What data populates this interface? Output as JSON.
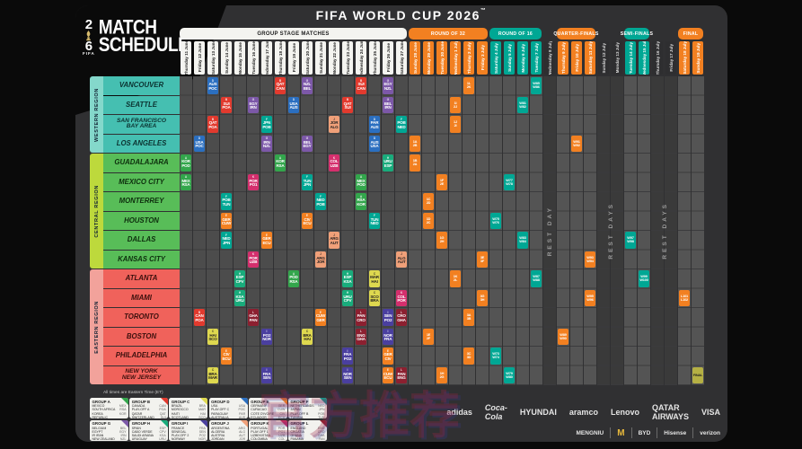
{
  "title": "FIFA WORLD CUP 2026",
  "title_tm": "™",
  "logo": {
    "year_top": "2",
    "year_bottom": "6",
    "line1": "MATCH",
    "line2": "SCHEDULE",
    "fifa": "FIFA"
  },
  "times_note": "All times are Eastern Time (ET)",
  "watermark": "官方推荐",
  "colors": {
    "poster_bg": "#303032",
    "grid_group": "#4c4c4c",
    "grid_knockout": "#545454",
    "grid_rest": "#3a3a3a",
    "orange": "#f28021",
    "teal": "#00a794",
    "white_pill": "#f4f4f0",
    "final_gold": "#b5b044",
    "western_strip": "#84d8cb",
    "western_row": "#45bfb1",
    "central_strip": "#bdd93c",
    "central_row": "#58bd58",
    "eastern_strip": "#f2a29b",
    "eastern_row": "#f0625b"
  },
  "rounds": [
    {
      "label": "GROUP STAGE MATCHES",
      "type": "group",
      "from": 0,
      "to": 16
    },
    {
      "label": "ROUND OF 32",
      "type": "orange",
      "from": 17,
      "to": 22
    },
    {
      "label": "ROUND OF 16",
      "type": "teal",
      "from": 23,
      "to": 26
    },
    {
      "label": "QUARTER-FINALS",
      "type": "orange",
      "from": 28,
      "to": 30
    },
    {
      "label": "SEMI-FINALS",
      "type": "teal",
      "from": 33,
      "to": 34
    },
    {
      "label": "FINAL",
      "type": "orange",
      "from": 37,
      "to": 38
    }
  ],
  "columns": [
    {
      "d": "Thursday 11 June",
      "t": "group"
    },
    {
      "d": "Friday 12 June",
      "t": "group"
    },
    {
      "d": "Saturday 13 June",
      "t": "group"
    },
    {
      "d": "Sunday 14 June",
      "t": "group"
    },
    {
      "d": "Monday 15 June",
      "t": "group"
    },
    {
      "d": "Tuesday 16 June",
      "t": "group"
    },
    {
      "d": "Wednesday 17 June",
      "t": "group"
    },
    {
      "d": "Thursday 18 June",
      "t": "group"
    },
    {
      "d": "Friday 19 June",
      "t": "group"
    },
    {
      "d": "Saturday 20 June",
      "t": "group"
    },
    {
      "d": "Sunday 21 June",
      "t": "group"
    },
    {
      "d": "Monday 22 June",
      "t": "group"
    },
    {
      "d": "Tuesday 23 June",
      "t": "group"
    },
    {
      "d": "Wednesday 24 June",
      "t": "group"
    },
    {
      "d": "Thursday 25 June",
      "t": "group"
    },
    {
      "d": "Friday 26 June",
      "t": "group"
    },
    {
      "d": "Saturday 27 June",
      "t": "group"
    },
    {
      "d": "Sunday 28 June",
      "t": "r32"
    },
    {
      "d": "Monday 29 June",
      "t": "r32"
    },
    {
      "d": "Tuesday 30 June",
      "t": "r32"
    },
    {
      "d": "Wednesday 1 July",
      "t": "r32"
    },
    {
      "d": "Thursday 2 July",
      "t": "r32"
    },
    {
      "d": "Friday 3 July",
      "t": "r32"
    },
    {
      "d": "Saturday 4 July",
      "t": "r16"
    },
    {
      "d": "Sunday 5 July",
      "t": "r16"
    },
    {
      "d": "Monday 6 July",
      "t": "r16"
    },
    {
      "d": "Tuesday 7 July",
      "t": "r16"
    },
    {
      "d": "Wednesday 8 July",
      "t": "rest"
    },
    {
      "d": "Thursday 9 July",
      "t": "qf"
    },
    {
      "d": "Friday 10 July",
      "t": "qf"
    },
    {
      "d": "Saturday 11 July",
      "t": "qf"
    },
    {
      "d": "Sunday 12 July",
      "t": "rest"
    },
    {
      "d": "Monday 13 July",
      "t": "rest"
    },
    {
      "d": "Tuesday 14 July",
      "t": "sf"
    },
    {
      "d": "Wednesday 15 July",
      "t": "sf"
    },
    {
      "d": "Thursday 16 July",
      "t": "rest"
    },
    {
      "d": "Friday 17 July",
      "t": "rest"
    },
    {
      "d": "Saturday 18 July",
      "t": "final"
    },
    {
      "d": "Sunday 19 July",
      "t": "final"
    }
  ],
  "rest_labels": [
    {
      "col": 27,
      "span": 1,
      "label": "REST DAY"
    },
    {
      "col": 31,
      "span": 2,
      "label": "REST DAYS"
    },
    {
      "col": 35,
      "span": 2,
      "label": "REST DAYS"
    }
  ],
  "regions": [
    {
      "name": "WESTERN REGION",
      "cities": [
        "VANCOUVER",
        "SEATTLE",
        "SAN FRANCISCO\nBAY AREA",
        "LOS ANGELES"
      ]
    },
    {
      "name": "CENTRAL REGION",
      "cities": [
        "GUADALAJARA",
        "MEXICO CITY",
        "MONTERREY",
        "HOUSTON",
        "DALLAS",
        "KANSAS CITY"
      ]
    },
    {
      "name": "EASTERN REGION",
      "cities": [
        "ATLANTA",
        "MIAMI",
        "TORONTO",
        "BOSTON",
        "PHILADELPHIA",
        "NEW YORK\nNEW JERSEY"
      ]
    }
  ],
  "group_colors": {
    "A": "#33a64c",
    "B": "#e23a2e",
    "C": "#ded84f",
    "D": "#2b6fc0",
    "E": "#f28021",
    "F": "#00a794",
    "G": "#7c58a8",
    "H": "#19ac7c",
    "I": "#4a3f9f",
    "J": "#f0a079",
    "K": "#d42f6d",
    "L": "#8c2030"
  },
  "dark_text_groups": [
    "C",
    "J"
  ],
  "groups": [
    {
      "letter": "A",
      "title": "GROUP A",
      "teams": [
        [
          "MEXICO",
          "MEX"
        ],
        [
          "SOUTH AFRICA",
          "RSA"
        ],
        [
          "KOREA REPUBLIC",
          "KOR"
        ],
        [
          "PLAY-OFF D",
          "POD"
        ]
      ]
    },
    {
      "letter": "B",
      "title": "GROUP B",
      "teams": [
        [
          "CANADA",
          "CAN"
        ],
        [
          "PLAY-OFF A",
          "POA"
        ],
        [
          "QATAR",
          "QAT"
        ],
        [
          "SWITZERLAND",
          "SUI"
        ]
      ]
    },
    {
      "letter": "C",
      "title": "GROUP C",
      "teams": [
        [
          "BRAZIL",
          "BRA"
        ],
        [
          "MOROCCO",
          "MAR"
        ],
        [
          "HAITI",
          "HAI"
        ],
        [
          "SCOTLAND",
          "SCO"
        ]
      ]
    },
    {
      "letter": "D",
      "title": "GROUP D",
      "teams": [
        [
          "USA",
          "USA"
        ],
        [
          "PLAY-OFF C",
          "POC"
        ],
        [
          "PARAGUAY",
          "PAR"
        ],
        [
          "AUSTRALIA",
          "AUS"
        ]
      ]
    },
    {
      "letter": "E",
      "title": "GROUP E",
      "teams": [
        [
          "GERMANY",
          "GER"
        ],
        [
          "CURACAO",
          "CUW"
        ],
        [
          "COTE D'IVOIRE",
          "CIV"
        ],
        [
          "ECUADOR",
          "ECU"
        ]
      ]
    },
    {
      "letter": "F",
      "title": "GROUP F",
      "teams": [
        [
          "NETHERLANDS",
          "NED"
        ],
        [
          "JAPAN",
          "JPN"
        ],
        [
          "PLAY-OFF B",
          "POB"
        ],
        [
          "TUNISIA",
          "TUN"
        ]
      ]
    },
    {
      "letter": "G",
      "title": "GROUP G",
      "teams": [
        [
          "BELGIUM",
          "BEL"
        ],
        [
          "EGYPT",
          "EGY"
        ],
        [
          "IR IRAN",
          "IRN"
        ],
        [
          "NEW ZEALAND",
          "NZL"
        ]
      ]
    },
    {
      "letter": "H",
      "title": "GROUP H",
      "teams": [
        [
          "SPAIN",
          "ESP"
        ],
        [
          "CABO VERDE",
          "CPV"
        ],
        [
          "SAUDI ARABIA",
          "KSA"
        ],
        [
          "URUGUAY",
          "URU"
        ]
      ]
    },
    {
      "letter": "I",
      "title": "GROUP I",
      "teams": [
        [
          "FRANCE",
          "FRA"
        ],
        [
          "SENEGAL",
          "SEN"
        ],
        [
          "PLAY-OFF 2",
          "PO2"
        ],
        [
          "NORWAY",
          "NOR"
        ]
      ]
    },
    {
      "letter": "J",
      "title": "GROUP J",
      "teams": [
        [
          "ARGENTINA",
          "ARG"
        ],
        [
          "ALGERIA",
          "ALG"
        ],
        [
          "AUSTRIA",
          "AUT"
        ],
        [
          "JORDAN",
          "JOR"
        ]
      ]
    },
    {
      "letter": "K",
      "title": "GROUP K",
      "teams": [
        [
          "PORTUGAL",
          "POR"
        ],
        [
          "PLAY-OFF 1",
          "PO1"
        ],
        [
          "UZBEKISTAN",
          "UZB"
        ],
        [
          "COLOMBIA",
          "COL"
        ]
      ]
    },
    {
      "letter": "L",
      "title": "GROUP L",
      "teams": [
        [
          "ENGLAND",
          "ENG"
        ],
        [
          "CROATIA",
          "CRO"
        ],
        [
          "GHANA",
          "GHA"
        ],
        [
          "PANAMA",
          "PAN"
        ]
      ]
    }
  ],
  "matches": [
    {
      "r": 0,
      "c": 2,
      "g": "D",
      "t": [
        "AUS",
        "POC"
      ]
    },
    {
      "r": 0,
      "c": 7,
      "g": "B",
      "t": [
        "QAT",
        "CAN"
      ]
    },
    {
      "r": 0,
      "c": 9,
      "g": "G",
      "t": [
        "NZL",
        "BEL"
      ]
    },
    {
      "r": 0,
      "c": 13,
      "g": "B",
      "t": [
        "SUI",
        "CAN"
      ]
    },
    {
      "r": 0,
      "c": 15,
      "g": "G",
      "t": [
        "EGY",
        "NZL"
      ]
    },
    {
      "r": 1,
      "c": 3,
      "g": "B",
      "t": [
        "SUI",
        "POA"
      ]
    },
    {
      "r": 1,
      "c": 5,
      "g": "G",
      "t": [
        "EGY",
        "IRN"
      ]
    },
    {
      "r": 1,
      "c": 8,
      "g": "D",
      "t": [
        "USA",
        "AUS"
      ]
    },
    {
      "r": 1,
      "c": 12,
      "g": "B",
      "t": [
        "QAT",
        "SUI"
      ]
    },
    {
      "r": 1,
      "c": 15,
      "g": "G",
      "t": [
        "BEL",
        "IRN"
      ]
    },
    {
      "r": 2,
      "c": 2,
      "g": "B",
      "t": [
        "QAT",
        "POA"
      ]
    },
    {
      "r": 2,
      "c": 6,
      "g": "F",
      "t": [
        "JPN",
        "POB"
      ]
    },
    {
      "r": 2,
      "c": 11,
      "g": "J",
      "t": [
        "JOR",
        "ALG"
      ]
    },
    {
      "r": 2,
      "c": 14,
      "g": "D",
      "t": [
        "PAR",
        "AUS"
      ]
    },
    {
      "r": 2,
      "c": 16,
      "g": "F",
      "t": [
        "POB",
        "NED"
      ]
    },
    {
      "r": 3,
      "c": 1,
      "g": "D",
      "t": [
        "USA",
        "POC"
      ]
    },
    {
      "r": 3,
      "c": 6,
      "g": "G",
      "t": [
        "IRN",
        "NZL"
      ]
    },
    {
      "r": 3,
      "c": 9,
      "g": "G",
      "t": [
        "BEL",
        "EGY"
      ]
    },
    {
      "r": 3,
      "c": 14,
      "g": "D",
      "t": [
        "AUS",
        "USA"
      ]
    },
    {
      "r": 4,
      "c": 0,
      "g": "A",
      "t": [
        "KOR",
        "POD"
      ]
    },
    {
      "r": 4,
      "c": 7,
      "g": "A",
      "t": [
        "KOR",
        "RSA"
      ]
    },
    {
      "r": 4,
      "c": 11,
      "g": "K",
      "t": [
        "COL",
        "UZB"
      ]
    },
    {
      "r": 4,
      "c": 15,
      "g": "H",
      "t": [
        "URU",
        "ESP"
      ]
    },
    {
      "r": 5,
      "c": 0,
      "g": "A",
      "t": [
        "MEX",
        "RSA"
      ]
    },
    {
      "r": 5,
      "c": 5,
      "g": "K",
      "t": [
        "POR",
        "PO1"
      ]
    },
    {
      "r": 5,
      "c": 9,
      "g": "F",
      "t": [
        "TUN",
        "JPN"
      ]
    },
    {
      "r": 5,
      "c": 13,
      "g": "A",
      "t": [
        "MEX",
        "POD"
      ]
    },
    {
      "r": 6,
      "c": 3,
      "g": "F",
      "t": [
        "POB",
        "TUN"
      ]
    },
    {
      "r": 6,
      "c": 10,
      "g": "F",
      "t": [
        "NED",
        "POB"
      ]
    },
    {
      "r": 6,
      "c": 13,
      "g": "A",
      "t": [
        "RSA",
        "KOR"
      ]
    },
    {
      "r": 7,
      "c": 3,
      "g": "E",
      "t": [
        "GER",
        "CUW"
      ]
    },
    {
      "r": 7,
      "c": 9,
      "g": "E",
      "t": [
        "CIV",
        "ECU"
      ]
    },
    {
      "r": 7,
      "c": 14,
      "g": "F",
      "t": [
        "TUN",
        "NED"
      ]
    },
    {
      "r": 8,
      "c": 3,
      "g": "F",
      "t": [
        "NED",
        "JPN"
      ]
    },
    {
      "r": 8,
      "c": 6,
      "g": "E",
      "t": [
        "GER",
        "ECU"
      ]
    },
    {
      "r": 8,
      "c": 11,
      "g": "J",
      "t": [
        "ARG",
        "AUT"
      ]
    },
    {
      "r": 9,
      "c": 5,
      "g": "K",
      "t": [
        "POR",
        "UZB"
      ]
    },
    {
      "r": 9,
      "c": 10,
      "g": "J",
      "t": [
        "ARG",
        "JOR"
      ]
    },
    {
      "r": 9,
      "c": 16,
      "g": "J",
      "t": [
        "ALG",
        "AUT"
      ]
    },
    {
      "r": 10,
      "c": 4,
      "g": "H",
      "t": [
        "ESP",
        "CPV"
      ]
    },
    {
      "r": 10,
      "c": 8,
      "g": "A",
      "t": [
        "POD",
        "RSA"
      ]
    },
    {
      "r": 10,
      "c": 12,
      "g": "H",
      "t": [
        "ESP",
        "KSA"
      ]
    },
    {
      "r": 10,
      "c": 14,
      "g": "C",
      "t": [
        "MAR",
        "HAI"
      ]
    },
    {
      "r": 11,
      "c": 4,
      "g": "H",
      "t": [
        "KSA",
        "URU"
      ]
    },
    {
      "r": 11,
      "c": 12,
      "g": "H",
      "t": [
        "URU",
        "CPV"
      ]
    },
    {
      "r": 11,
      "c": 14,
      "g": "C",
      "t": [
        "SCO",
        "BRA"
      ]
    },
    {
      "r": 11,
      "c": 16,
      "g": "K",
      "t": [
        "COL",
        "POR"
      ]
    },
    {
      "r": 12,
      "c": 1,
      "g": "B",
      "t": [
        "CAN",
        "POA"
      ]
    },
    {
      "r": 12,
      "c": 5,
      "g": "L",
      "t": [
        "GHA",
        "PAN"
      ]
    },
    {
      "r": 12,
      "c": 10,
      "g": "E",
      "t": [
        "CUW",
        "GER"
      ]
    },
    {
      "r": 12,
      "c": 13,
      "g": "L",
      "t": [
        "PAN",
        "CRO"
      ]
    },
    {
      "r": 12,
      "c": 15,
      "g": "I",
      "t": [
        "SEN",
        "PO2"
      ]
    },
    {
      "r": 12,
      "c": 16,
      "g": "L",
      "t": [
        "CRO",
        "GHA"
      ]
    },
    {
      "r": 13,
      "c": 2,
      "g": "C",
      "t": [
        "HAI",
        "SCO"
      ]
    },
    {
      "r": 13,
      "c": 6,
      "g": "I",
      "t": [
        "PO2",
        "NOR"
      ]
    },
    {
      "r": 13,
      "c": 9,
      "g": "C",
      "t": [
        "BRA",
        "HAI"
      ]
    },
    {
      "r": 13,
      "c": 13,
      "g": "L",
      "t": [
        "ENG",
        "GHA"
      ]
    },
    {
      "r": 13,
      "c": 15,
      "g": "I",
      "t": [
        "NOR",
        "FRA"
      ]
    },
    {
      "r": 14,
      "c": 3,
      "g": "E",
      "t": [
        "CIV",
        "ECU"
      ]
    },
    {
      "r": 14,
      "c": 12,
      "g": "I",
      "t": [
        "FRA",
        "PO2"
      ]
    },
    {
      "r": 14,
      "c": 15,
      "g": "E",
      "t": [
        "GER",
        "CIV"
      ]
    },
    {
      "r": 15,
      "c": 2,
      "g": "C",
      "t": [
        "BRA",
        "MAR"
      ]
    },
    {
      "r": 15,
      "c": 6,
      "g": "I",
      "t": [
        "FRA",
        "SEN"
      ]
    },
    {
      "r": 15,
      "c": 12,
      "g": "I",
      "t": [
        "NOR",
        "SEN"
      ]
    },
    {
      "r": 15,
      "c": 15,
      "g": "E",
      "t": [
        "CUW",
        "ECU"
      ]
    },
    {
      "r": 15,
      "c": 16,
      "g": "L",
      "t": [
        "PAN",
        "ENG"
      ]
    }
  ],
  "knockout": [
    {
      "r": 3,
      "c": 17,
      "k": "r32",
      "t": [
        "1A",
        "2B"
      ]
    },
    {
      "r": 4,
      "c": 17,
      "k": "r32",
      "t": [
        "1B",
        "2A"
      ]
    },
    {
      "r": 6,
      "c": 18,
      "k": "r32",
      "t": [
        "1C",
        "2D"
      ]
    },
    {
      "r": 7,
      "c": 18,
      "k": "r32",
      "t": [
        "1D",
        "2C"
      ]
    },
    {
      "r": 13,
      "c": 18,
      "k": "r32",
      "t": [
        "1E",
        "2F"
      ]
    },
    {
      "r": 5,
      "c": 19,
      "k": "r32",
      "t": [
        "1F",
        "2E"
      ]
    },
    {
      "r": 8,
      "c": 19,
      "k": "r32",
      "t": [
        "1G",
        "2H"
      ]
    },
    {
      "r": 15,
      "c": 19,
      "k": "r32",
      "t": [
        "1H",
        "2G"
      ]
    },
    {
      "r": 1,
      "c": 20,
      "k": "r32",
      "t": [
        "1I",
        "2J"
      ]
    },
    {
      "r": 2,
      "c": 20,
      "k": "r32",
      "t": [
        "1J",
        "2I"
      ]
    },
    {
      "r": 10,
      "c": 20,
      "k": "r32",
      "t": [
        "1K",
        "2L"
      ]
    },
    {
      "r": 0,
      "c": 21,
      "k": "r32",
      "t": [
        "1L",
        "2K"
      ]
    },
    {
      "r": 12,
      "c": 21,
      "k": "r32",
      "t": [
        "3A",
        "3B"
      ]
    },
    {
      "r": 14,
      "c": 21,
      "k": "r32",
      "t": [
        "3C",
        "3D"
      ]
    },
    {
      "r": 9,
      "c": 22,
      "k": "r32",
      "t": [
        "3E",
        "3F"
      ]
    },
    {
      "r": 11,
      "c": 22,
      "k": "r32",
      "t": [
        "3G",
        "3H"
      ]
    },
    {
      "r": 14,
      "c": 23,
      "k": "r16",
      "t": [
        "W73",
        "W74"
      ]
    },
    {
      "r": 7,
      "c": 23,
      "k": "r16",
      "t": [
        "W75",
        "W76"
      ]
    },
    {
      "r": 5,
      "c": 24,
      "k": "r16",
      "t": [
        "W77",
        "W78"
      ]
    },
    {
      "r": 15,
      "c": 24,
      "k": "r16",
      "t": [
        "W79",
        "W80"
      ]
    },
    {
      "r": 1,
      "c": 25,
      "k": "r16",
      "t": [
        "W81",
        "W82"
      ]
    },
    {
      "r": 8,
      "c": 25,
      "k": "r16",
      "t": [
        "W83",
        "W84"
      ]
    },
    {
      "r": 0,
      "c": 26,
      "k": "r16",
      "t": [
        "W85",
        "W86"
      ]
    },
    {
      "r": 10,
      "c": 26,
      "k": "r16",
      "t": [
        "W87",
        "W88"
      ]
    },
    {
      "r": 13,
      "c": 28,
      "k": "qf",
      "t": [
        "W89",
        "W90"
      ]
    },
    {
      "r": 3,
      "c": 29,
      "k": "qf",
      "t": [
        "W91",
        "W92"
      ]
    },
    {
      "r": 9,
      "c": 30,
      "k": "qf",
      "t": [
        "W93",
        "W94"
      ]
    },
    {
      "r": 11,
      "c": 30,
      "k": "qf",
      "t": [
        "W95",
        "W96"
      ]
    },
    {
      "r": 8,
      "c": 33,
      "k": "sf",
      "t": [
        "W97",
        "W98"
      ]
    },
    {
      "r": 10,
      "c": 34,
      "k": "sf",
      "t": [
        "W99",
        "W100"
      ]
    },
    {
      "r": 11,
      "c": 37,
      "k": "bronze",
      "t": [
        "L101",
        "L102"
      ]
    },
    {
      "r": 15,
      "c": 38,
      "k": "final",
      "t": [
        "FINAL",
        ""
      ]
    }
  ],
  "sponsors": {
    "row1": [
      "adidas",
      "Coca-Cola",
      "HYUNDAI",
      "aramco",
      "Lenovo",
      "QATAR AIRWAYS",
      "VISA"
    ],
    "row2": [
      "MENGNIU",
      "M",
      "BYD",
      "Hisense",
      "verizon"
    ]
  }
}
